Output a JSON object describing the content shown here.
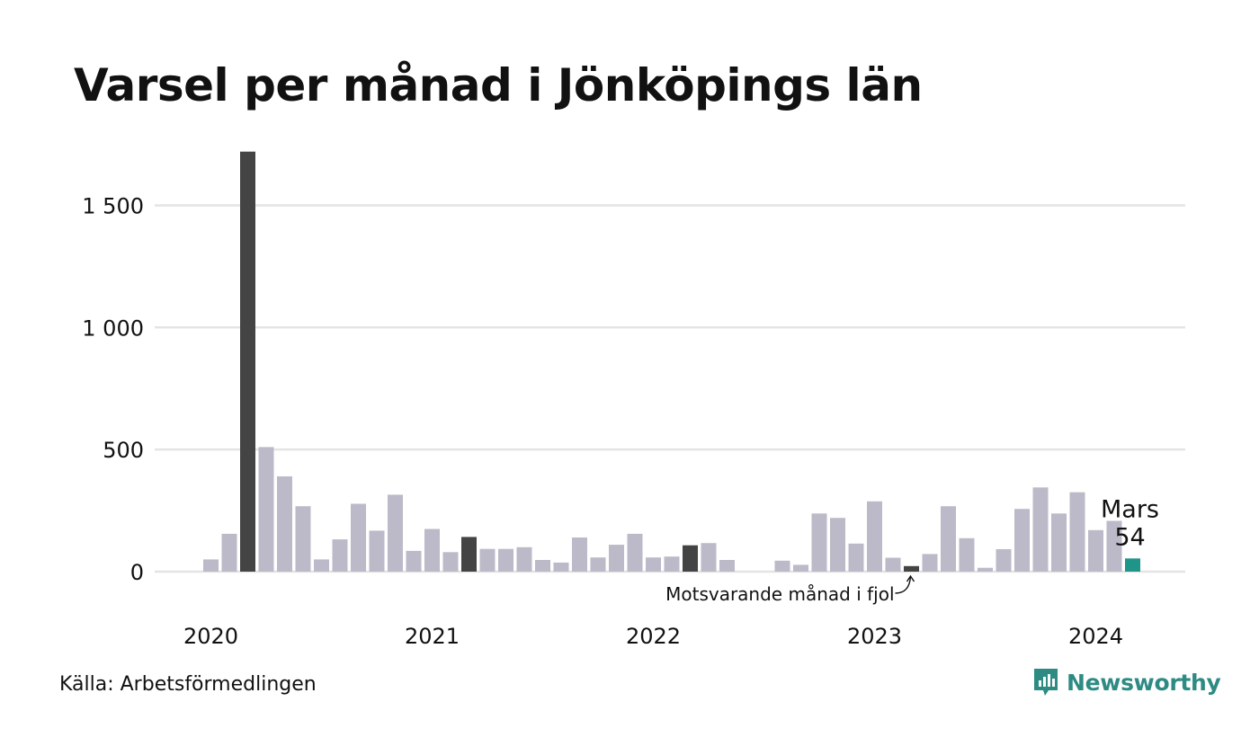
{
  "chart_data": {
    "type": "bar",
    "title": "Varsel per månad i Jönköpings län",
    "xlabel": "",
    "ylabel": "",
    "ylim": [
      0,
      1750
    ],
    "y_ticks": [
      0,
      500,
      1000,
      1500
    ],
    "y_tick_labels": [
      "0",
      "500",
      "1 000",
      "1 500"
    ],
    "x_tick_labels": [
      "2020",
      "2021",
      "2022",
      "2023",
      "2024"
    ],
    "grid": "horizontal",
    "legend": "none",
    "x": [
      "2020-01",
      "2020-02",
      "2020-03",
      "2020-04",
      "2020-05",
      "2020-06",
      "2020-07",
      "2020-08",
      "2020-09",
      "2020-10",
      "2020-11",
      "2020-12",
      "2021-01",
      "2021-02",
      "2021-03",
      "2021-04",
      "2021-05",
      "2021-06",
      "2021-07",
      "2021-08",
      "2021-09",
      "2021-10",
      "2021-11",
      "2021-12",
      "2022-01",
      "2022-02",
      "2022-03",
      "2022-04",
      "2022-05",
      "2022-06",
      "2022-07",
      "2022-08",
      "2022-09",
      "2022-10",
      "2022-11",
      "2022-12",
      "2023-01",
      "2023-02",
      "2023-03",
      "2023-04",
      "2023-05",
      "2023-06",
      "2023-07",
      "2023-08",
      "2023-09",
      "2023-10",
      "2023-11",
      "2023-12",
      "2024-01",
      "2024-02",
      "2024-03"
    ],
    "values": [
      50,
      155,
      1720,
      510,
      390,
      268,
      50,
      132,
      278,
      168,
      315,
      85,
      175,
      80,
      142,
      93,
      93,
      100,
      48,
      37,
      140,
      58,
      110,
      155,
      58,
      62,
      108,
      117,
      48,
      0,
      0,
      45,
      28,
      238,
      220,
      115,
      288,
      57,
      23,
      72,
      268,
      137,
      16,
      92,
      257,
      345,
      238,
      325,
      170,
      208,
      54
    ],
    "highlight_same_month": [
      "2020-03",
      "2021-03",
      "2022-03",
      "2023-03"
    ],
    "current": {
      "x": "2024-03",
      "month_label": "Mars",
      "value_label": "54"
    },
    "annotation": "Motsvarande månad i fjol",
    "colors": {
      "default": "#bcbac8",
      "same_month": "#444444",
      "current": "#1f9489",
      "grid": "#e4e4e4"
    }
  },
  "source": "Källa: Arbetsförmedlingen",
  "brand": {
    "name": "Newsworthy",
    "icon": "newsworthy-logo-icon",
    "color": "#2e8b84"
  }
}
